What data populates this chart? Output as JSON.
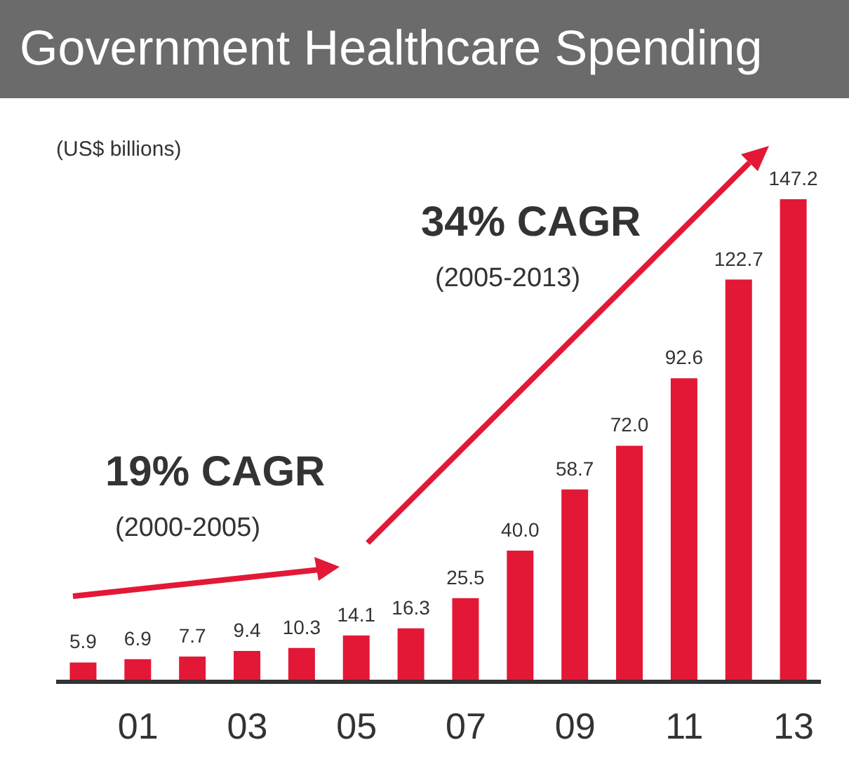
{
  "chart_data": {
    "type": "bar",
    "title": "Government Healthcare Spending",
    "categories": [
      null,
      "01",
      null,
      "03",
      null,
      "05",
      null,
      "07",
      null,
      "09",
      null,
      "11",
      null,
      "13"
    ],
    "values": [
      5.9,
      6.9,
      7.7,
      9.4,
      10.3,
      14.1,
      16.3,
      25.5,
      40.0,
      58.7,
      72.0,
      92.6,
      122.7,
      147.2
    ],
    "value_labels": [
      "5.9",
      "6.9",
      "7.7",
      "9.4",
      "10.3",
      "14.1",
      "16.3",
      "25.5",
      "40.0",
      "58.7",
      "72.0",
      "92.6",
      "122.7",
      "147.2"
    ],
    "color": "#e31837",
    "annotations": [
      "(US$ billions)",
      "19% CAGR",
      "(2000-2005)",
      "34% CAGR",
      "(2005-2013)"
    ]
  }
}
